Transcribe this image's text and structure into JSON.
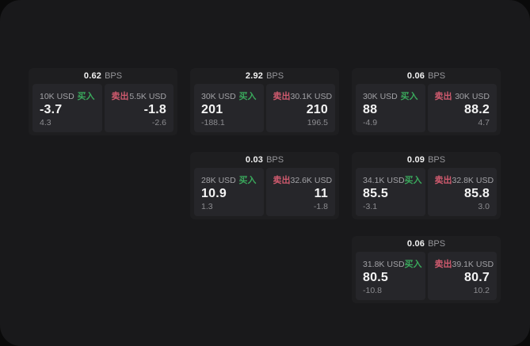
{
  "labels": {
    "bps_suffix": "BPS",
    "buy": "买入",
    "sell": "卖出"
  },
  "colors": {
    "frame": "#0a0a0a",
    "surface": "#19191b",
    "card": "#1e1e20",
    "panel": "#26262a",
    "buy": "#3aa85c",
    "sell": "#cf5a6e"
  },
  "cards": [
    {
      "bps": "0.62",
      "row": 1,
      "col": 1,
      "buy": {
        "notional": "10K USD",
        "value": "-3.7",
        "sub": "4.3"
      },
      "sell": {
        "notional": "5.5K USD",
        "value": "-1.8",
        "sub": "-2.6"
      }
    },
    {
      "bps": "2.92",
      "row": 1,
      "col": 2,
      "buy": {
        "notional": "30K USD",
        "value": "201",
        "sub": "-188.1"
      },
      "sell": {
        "notional": "30.1K USD",
        "value": "210",
        "sub": "196.5"
      }
    },
    {
      "bps": "0.06",
      "row": 1,
      "col": 3,
      "buy": {
        "notional": "30K USD",
        "value": "88",
        "sub": "-4.9"
      },
      "sell": {
        "notional": "30K USD",
        "value": "88.2",
        "sub": "4.7"
      }
    },
    {
      "bps": "0.03",
      "row": 2,
      "col": 2,
      "buy": {
        "notional": "28K USD",
        "value": "10.9",
        "sub": "1.3"
      },
      "sell": {
        "notional": "32.6K USD",
        "value": "11",
        "sub": "-1.8"
      }
    },
    {
      "bps": "0.09",
      "row": 2,
      "col": 3,
      "buy": {
        "notional": "34.1K USD",
        "value": "85.5",
        "sub": "-3.1"
      },
      "sell": {
        "notional": "32.8K USD",
        "value": "85.8",
        "sub": "3.0"
      }
    },
    {
      "bps": "0.06",
      "row": 3,
      "col": 3,
      "buy": {
        "notional": "31.8K USD",
        "value": "80.5",
        "sub": "-10.8"
      },
      "sell": {
        "notional": "39.1K USD",
        "value": "80.7",
        "sub": "10.2"
      }
    }
  ]
}
